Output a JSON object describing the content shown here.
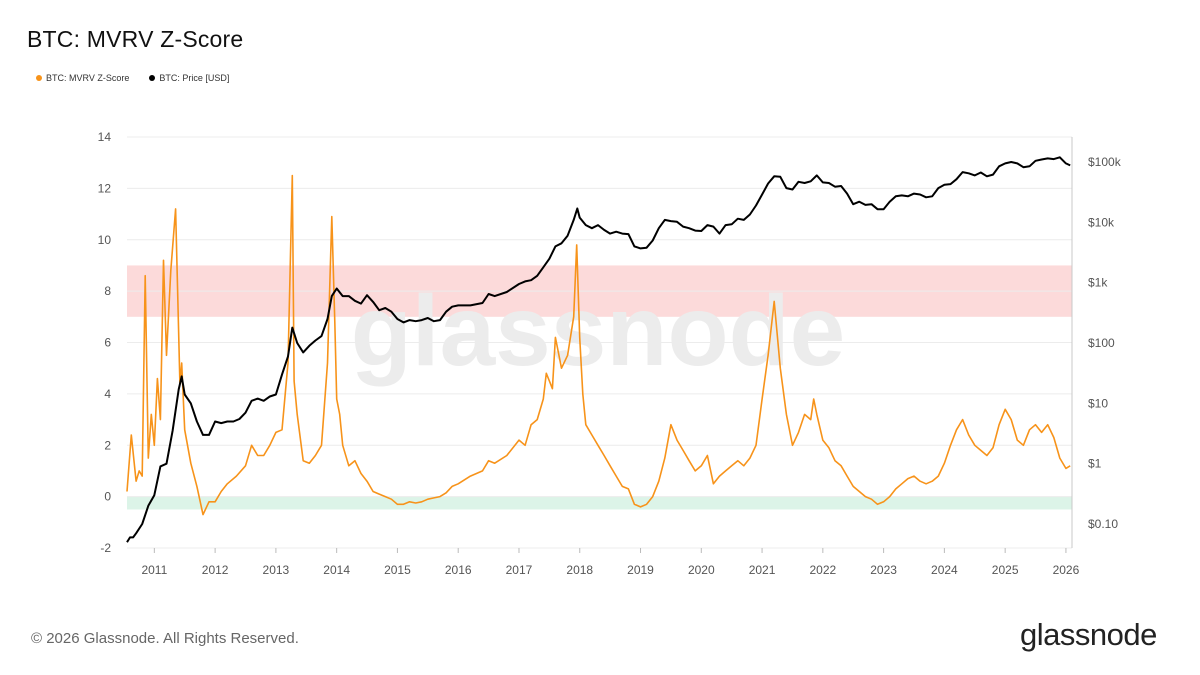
{
  "header": {
    "title": "BTC: MVRV Z-Score"
  },
  "legend": [
    {
      "label": "BTC: MVRV Z-Score",
      "color": "#f7931a"
    },
    {
      "label": "BTC: Price [USD]",
      "color": "#000000"
    }
  ],
  "watermark": "glassnode",
  "footer": {
    "copyright": "© 2026 Glassnode. All Rights Reserved.",
    "brand": "glassnode"
  },
  "chart_data": {
    "type": "line",
    "title": "BTC: MVRV Z-Score",
    "xlabel": "",
    "ylabel": "",
    "xlim": [
      2010.55,
      2026.1
    ],
    "x_ticks": [
      "2011",
      "2012",
      "2013",
      "2014",
      "2015",
      "2016",
      "2017",
      "2018",
      "2019",
      "2020",
      "2021",
      "2022",
      "2023",
      "2024",
      "2025",
      "2026"
    ],
    "y_left": {
      "range": [
        -2,
        14
      ],
      "ticks": [
        -2,
        0,
        2,
        4,
        6,
        8,
        10,
        12,
        14
      ]
    },
    "y_right": {
      "scale": "log",
      "range": [
        0.04,
        260000
      ],
      "ticks": [
        0.1,
        1,
        10,
        100,
        1000,
        10000,
        100000
      ],
      "tick_labels": [
        "$0.10",
        "$1",
        "$10",
        "$100",
        "$1k",
        "$10k",
        "$100k"
      ]
    },
    "bands": [
      {
        "from": 7,
        "to": 9,
        "color": "#fbd3d3"
      },
      {
        "from": -0.5,
        "to": 0,
        "color": "#d6f2e4"
      }
    ],
    "grid": true,
    "legend_position": "top-left",
    "series": [
      {
        "name": "BTC: MVRV Z-Score",
        "axis": "left",
        "color": "#f7931a",
        "x": [
          2010.55,
          2010.62,
          2010.7,
          2010.75,
          2010.8,
          2010.85,
          2010.9,
          2010.95,
          2011.0,
          2011.05,
          2011.1,
          2011.15,
          2011.2,
          2011.27,
          2011.35,
          2011.42,
          2011.45,
          2011.5,
          2011.6,
          2011.7,
          2011.8,
          2011.9,
          2012.0,
          2012.1,
          2012.2,
          2012.35,
          2012.5,
          2012.6,
          2012.7,
          2012.8,
          2012.9,
          2013.0,
          2013.1,
          2013.2,
          2013.27,
          2013.3,
          2013.35,
          2013.45,
          2013.55,
          2013.65,
          2013.75,
          2013.85,
          2013.92,
          2013.97,
          2014.0,
          2014.05,
          2014.1,
          2014.2,
          2014.3,
          2014.4,
          2014.5,
          2014.6,
          2014.7,
          2014.8,
          2014.9,
          2015.0,
          2015.1,
          2015.2,
          2015.3,
          2015.4,
          2015.5,
          2015.6,
          2015.7,
          2015.8,
          2015.9,
          2016.0,
          2016.2,
          2016.4,
          2016.5,
          2016.6,
          2016.8,
          2017.0,
          2017.1,
          2017.2,
          2017.3,
          2017.4,
          2017.45,
          2017.5,
          2017.55,
          2017.6,
          2017.7,
          2017.8,
          2017.9,
          2017.95,
          2018.0,
          2018.05,
          2018.1,
          2018.2,
          2018.3,
          2018.4,
          2018.5,
          2018.6,
          2018.7,
          2018.8,
          2018.9,
          2019.0,
          2019.1,
          2019.2,
          2019.3,
          2019.4,
          2019.5,
          2019.6,
          2019.7,
          2019.8,
          2019.9,
          2020.0,
          2020.1,
          2020.2,
          2020.3,
          2020.4,
          2020.5,
          2020.6,
          2020.7,
          2020.8,
          2020.9,
          2021.0,
          2021.1,
          2021.2,
          2021.3,
          2021.4,
          2021.5,
          2021.6,
          2021.7,
          2021.8,
          2021.85,
          2021.9,
          2022.0,
          2022.1,
          2022.2,
          2022.3,
          2022.4,
          2022.5,
          2022.6,
          2022.7,
          2022.8,
          2022.9,
          2023.0,
          2023.1,
          2023.2,
          2023.3,
          2023.4,
          2023.5,
          2023.6,
          2023.7,
          2023.8,
          2023.9,
          2024.0,
          2024.1,
          2024.2,
          2024.3,
          2024.4,
          2024.5,
          2024.6,
          2024.7,
          2024.8,
          2024.9,
          2025.0,
          2025.1,
          2025.2,
          2025.3,
          2025.4,
          2025.5,
          2025.6,
          2025.7,
          2025.8,
          2025.9,
          2026.0,
          2026.07
        ],
        "y": [
          0.2,
          2.4,
          0.6,
          1.0,
          0.8,
          8.6,
          1.5,
          3.2,
          2.0,
          4.6,
          3.0,
          9.2,
          5.5,
          8.8,
          11.2,
          4.4,
          5.2,
          2.6,
          1.3,
          0.4,
          -0.7,
          -0.2,
          -0.2,
          0.2,
          0.5,
          0.8,
          1.2,
          2.0,
          1.6,
          1.6,
          2.0,
          2.5,
          2.6,
          5.2,
          12.5,
          4.5,
          3.2,
          1.4,
          1.3,
          1.6,
          2.0,
          5.2,
          10.9,
          6.8,
          3.8,
          3.2,
          2.0,
          1.2,
          1.4,
          0.9,
          0.6,
          0.2,
          0.1,
          0.0,
          -0.1,
          -0.3,
          -0.3,
          -0.2,
          -0.25,
          -0.2,
          -0.1,
          -0.05,
          0.0,
          0.15,
          0.4,
          0.5,
          0.8,
          1.0,
          1.4,
          1.3,
          1.6,
          2.2,
          2.0,
          2.8,
          3.0,
          3.8,
          4.8,
          4.5,
          4.2,
          6.2,
          5.0,
          5.5,
          7.0,
          9.8,
          6.2,
          4.0,
          2.8,
          2.4,
          2.0,
          1.6,
          1.2,
          0.8,
          0.4,
          0.3,
          -0.3,
          -0.4,
          -0.3,
          0.0,
          0.6,
          1.5,
          2.8,
          2.2,
          1.8,
          1.4,
          1.0,
          1.2,
          1.6,
          0.5,
          0.8,
          1.0,
          1.2,
          1.4,
          1.2,
          1.5,
          2.0,
          3.8,
          5.5,
          7.6,
          5.0,
          3.2,
          2.0,
          2.5,
          3.2,
          3.0,
          3.8,
          3.2,
          2.2,
          1.9,
          1.4,
          1.2,
          0.8,
          0.4,
          0.2,
          0.0,
          -0.1,
          -0.3,
          -0.2,
          0.0,
          0.3,
          0.5,
          0.7,
          0.8,
          0.6,
          0.5,
          0.6,
          0.8,
          1.3,
          2.0,
          2.6,
          3.0,
          2.4,
          2.0,
          1.8,
          1.6,
          1.9,
          2.8,
          3.4,
          3.0,
          2.2,
          2.0,
          2.6,
          2.8,
          2.5,
          2.8,
          2.3,
          1.5,
          1.1,
          1.2
        ]
      },
      {
        "name": "BTC: Price [USD]",
        "axis": "right",
        "color": "#000000",
        "x": [
          2010.55,
          2010.6,
          2010.65,
          2010.7,
          2010.8,
          2010.9,
          2011.0,
          2011.1,
          2011.2,
          2011.3,
          2011.4,
          2011.45,
          2011.5,
          2011.6,
          2011.7,
          2011.8,
          2011.9,
          2012.0,
          2012.1,
          2012.2,
          2012.3,
          2012.4,
          2012.5,
          2012.6,
          2012.7,
          2012.8,
          2012.9,
          2013.0,
          2013.1,
          2013.2,
          2013.27,
          2013.35,
          2013.45,
          2013.55,
          2013.65,
          2013.75,
          2013.85,
          2013.92,
          2014.0,
          2014.1,
          2014.2,
          2014.3,
          2014.4,
          2014.5,
          2014.6,
          2014.7,
          2014.8,
          2014.9,
          2015.0,
          2015.1,
          2015.2,
          2015.3,
          2015.4,
          2015.5,
          2015.6,
          2015.7,
          2015.8,
          2015.9,
          2016.0,
          2016.2,
          2016.4,
          2016.5,
          2016.6,
          2016.8,
          2017.0,
          2017.1,
          2017.2,
          2017.3,
          2017.4,
          2017.5,
          2017.6,
          2017.7,
          2017.8,
          2017.9,
          2017.96,
          2018.0,
          2018.1,
          2018.2,
          2018.3,
          2018.4,
          2018.5,
          2018.6,
          2018.7,
          2018.8,
          2018.9,
          2019.0,
          2019.1,
          2019.2,
          2019.3,
          2019.4,
          2019.5,
          2019.6,
          2019.7,
          2019.8,
          2019.9,
          2020.0,
          2020.1,
          2020.2,
          2020.3,
          2020.4,
          2020.5,
          2020.6,
          2020.7,
          2020.8,
          2020.9,
          2021.0,
          2021.1,
          2021.2,
          2021.3,
          2021.4,
          2021.5,
          2021.6,
          2021.7,
          2021.8,
          2021.9,
          2022.0,
          2022.1,
          2022.2,
          2022.3,
          2022.4,
          2022.5,
          2022.6,
          2022.7,
          2022.8,
          2022.9,
          2023.0,
          2023.1,
          2023.2,
          2023.3,
          2023.4,
          2023.5,
          2023.6,
          2023.7,
          2023.8,
          2023.9,
          2024.0,
          2024.1,
          2024.2,
          2024.3,
          2024.4,
          2024.5,
          2024.6,
          2024.7,
          2024.8,
          2024.9,
          2025.0,
          2025.1,
          2025.2,
          2025.3,
          2025.4,
          2025.5,
          2025.6,
          2025.7,
          2025.8,
          2025.9,
          2026.0,
          2026.07
        ],
        "y": [
          0.05,
          0.06,
          0.06,
          0.07,
          0.1,
          0.2,
          0.3,
          0.9,
          1.0,
          3.5,
          17,
          28,
          14,
          10,
          5,
          3,
          3,
          5,
          4.7,
          5,
          5,
          5.5,
          7,
          11,
          12,
          11,
          13,
          14,
          30,
          60,
          180,
          100,
          70,
          90,
          110,
          130,
          250,
          600,
          800,
          600,
          600,
          500,
          450,
          620,
          480,
          350,
          380,
          330,
          250,
          220,
          240,
          230,
          240,
          260,
          230,
          240,
          330,
          400,
          420,
          420,
          460,
          650,
          600,
          700,
          950,
          1050,
          1100,
          1300,
          1800,
          2500,
          4000,
          4500,
          6000,
          11000,
          17000,
          12000,
          9000,
          8000,
          9000,
          7500,
          6500,
          7000,
          6500,
          6400,
          4000,
          3700,
          3800,
          5000,
          8000,
          11000,
          10500,
          10200,
          8500,
          8000,
          7300,
          7200,
          9000,
          8500,
          6500,
          9000,
          9300,
          11500,
          11000,
          13500,
          19000,
          29000,
          44000,
          58000,
          57000,
          37000,
          35000,
          47000,
          45000,
          48000,
          60000,
          46000,
          45000,
          39000,
          40000,
          30000,
          20000,
          22000,
          19500,
          20000,
          16500,
          16500,
          22000,
          27000,
          28000,
          27000,
          30000,
          29000,
          26000,
          27000,
          37000,
          42000,
          43000,
          52000,
          68000,
          65000,
          60000,
          67000,
          58000,
          62000,
          85000,
          95000,
          100000,
          95000,
          82000,
          85000,
          105000,
          110000,
          115000,
          112000,
          120000,
          95000,
          88000
        ]
      }
    ]
  }
}
